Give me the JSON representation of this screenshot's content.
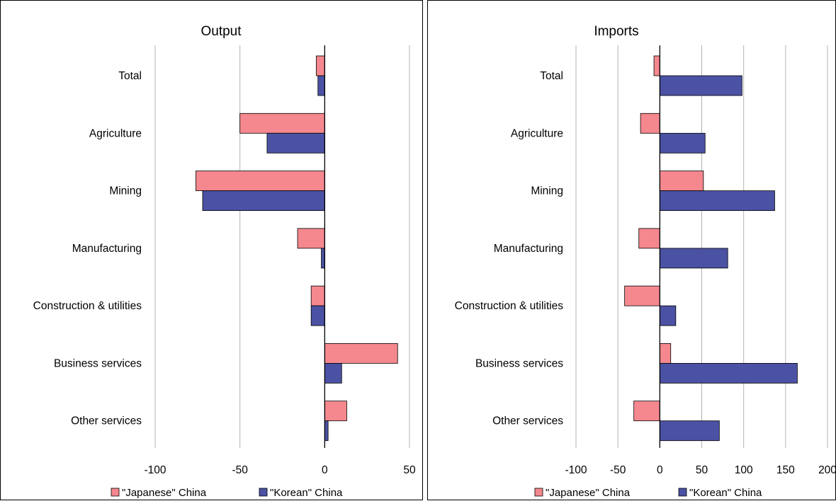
{
  "chart_data": [
    {
      "type": "bar",
      "orientation": "horizontal",
      "title": "Output",
      "categories": [
        "Total",
        "Agriculture",
        "Mining",
        "Manufacturing",
        "Construction & utilities",
        "Business services",
        "Other services"
      ],
      "series": [
        {
          "name": "\"Japanese\" China",
          "color": "#F4888E",
          "values": [
            -5,
            -50,
            -76,
            -16,
            -8,
            43,
            13
          ]
        },
        {
          "name": "\"Korean\" China",
          "color": "#4B52A3",
          "values": [
            -4,
            -34,
            -72,
            -2,
            -8,
            10,
            2
          ]
        }
      ],
      "xlim": [
        -100,
        50
      ],
      "xticks": [
        "-100",
        "-50",
        "0",
        "50"
      ],
      "grid": "vertical",
      "legend_position": "bottom"
    },
    {
      "type": "bar",
      "orientation": "horizontal",
      "title": "Imports",
      "categories": [
        "Total",
        "Agriculture",
        "Mining",
        "Manufacturing",
        "Construction & utilities",
        "Business services",
        "Other services"
      ],
      "series": [
        {
          "name": "\"Japanese\" China",
          "color": "#F4888E",
          "values": [
            -7,
            -23,
            52,
            -25,
            -42,
            13,
            -31
          ]
        },
        {
          "name": "\"Korean\" China",
          "color": "#4B52A3",
          "values": [
            98,
            54,
            137,
            81,
            19,
            164,
            71
          ]
        }
      ],
      "xlim": [
        -100,
        200
      ],
      "xticks": [
        "-100",
        "-50",
        "0",
        "50",
        "100",
        "150",
        "200"
      ],
      "grid": "vertical",
      "legend_position": "bottom"
    }
  ]
}
